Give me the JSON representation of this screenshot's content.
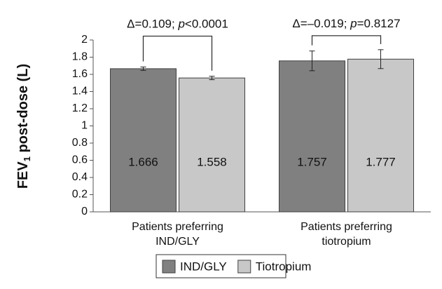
{
  "chart_data": {
    "type": "bar",
    "y_label": [
      "FEV",
      "1",
      " post-dose (L)"
    ],
    "categories": [
      [
        "Patients preferring",
        "IND/GLY"
      ],
      [
        "Patients preferring",
        "tiotropium"
      ]
    ],
    "series": [
      {
        "name": "IND/GLY",
        "color": "#808080",
        "values": [
          1.666,
          1.757
        ],
        "errors": [
          0.02,
          0.115
        ]
      },
      {
        "name": "Tiotropium",
        "color": "#c8c8c8",
        "values": [
          1.558,
          1.777
        ],
        "errors": [
          0.02,
          0.11
        ]
      }
    ],
    "annotations": [
      [
        "Δ=0.109; ",
        "p",
        "<0.0001"
      ],
      [
        "Δ=–0.019; ",
        "p",
        "=0.8127"
      ]
    ],
    "ylim": [
      0,
      2
    ],
    "yticks": [
      0,
      0.2,
      0.4,
      0.6,
      0.8,
      1,
      1.2,
      1.4,
      1.6,
      1.8,
      2
    ],
    "grid": false,
    "legend": "bottom"
  }
}
